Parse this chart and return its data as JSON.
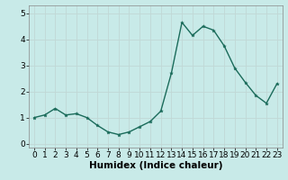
{
  "xlabel": "Humidex (Indice chaleur)",
  "ylabel": "",
  "background_color": "#c8eae8",
  "grid_color": "#c0d8d5",
  "line_color": "#1a6b5a",
  "marker_color": "#1a6b5a",
  "x_values": [
    0,
    1,
    2,
    3,
    4,
    5,
    6,
    7,
    8,
    9,
    10,
    11,
    12,
    13,
    14,
    15,
    16,
    17,
    18,
    19,
    20,
    21,
    22,
    23
  ],
  "y_values": [
    1.0,
    1.1,
    1.35,
    1.1,
    1.15,
    1.0,
    0.7,
    0.45,
    0.35,
    0.45,
    0.65,
    0.85,
    1.25,
    2.7,
    4.65,
    4.15,
    4.5,
    4.35,
    3.75,
    2.9,
    2.35,
    1.85,
    1.55,
    2.3
  ],
  "ylim": [
    -0.15,
    5.3
  ],
  "xlim": [
    -0.5,
    23.5
  ],
  "yticks": [
    0,
    1,
    2,
    3,
    4,
    5
  ],
  "xticks": [
    0,
    1,
    2,
    3,
    4,
    5,
    6,
    7,
    8,
    9,
    10,
    11,
    12,
    13,
    14,
    15,
    16,
    17,
    18,
    19,
    20,
    21,
    22,
    23
  ],
  "tick_fontsize": 6.5,
  "xlabel_fontsize": 7.5,
  "linewidth": 1.0,
  "markersize": 2.8
}
